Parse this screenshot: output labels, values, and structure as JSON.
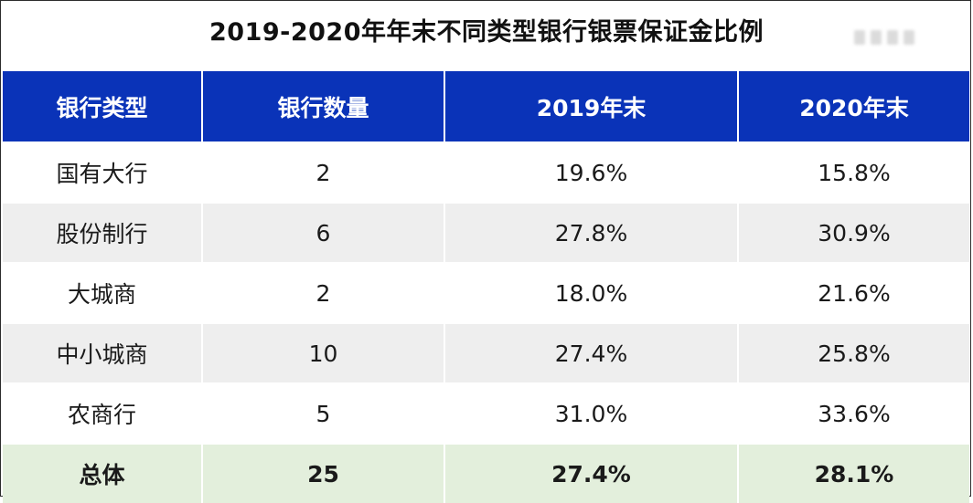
{
  "title": "2019-2020年年末不同类型银行银票保证金比例",
  "table": {
    "headers": [
      "银行类型",
      "银行数量",
      "2019年末",
      "2020年末"
    ],
    "rows": [
      [
        "国有大行",
        "2",
        "19.6%",
        "15.8%"
      ],
      [
        "股份制行",
        "6",
        "27.8%",
        "30.9%"
      ],
      [
        "大城商",
        "2",
        "18.0%",
        "21.6%"
      ],
      [
        "中小城商",
        "10",
        "27.4%",
        "25.8%"
      ],
      [
        "农商行",
        "5",
        "31.0%",
        "33.6%"
      ]
    ],
    "total": [
      "总体",
      "25",
      "27.4%",
      "28.1%"
    ]
  },
  "colors": {
    "header_bg": "#0a33b8",
    "header_text": "#ffffff",
    "row_stripe": "#eeeeee",
    "total_bg": "#e3efdc"
  }
}
